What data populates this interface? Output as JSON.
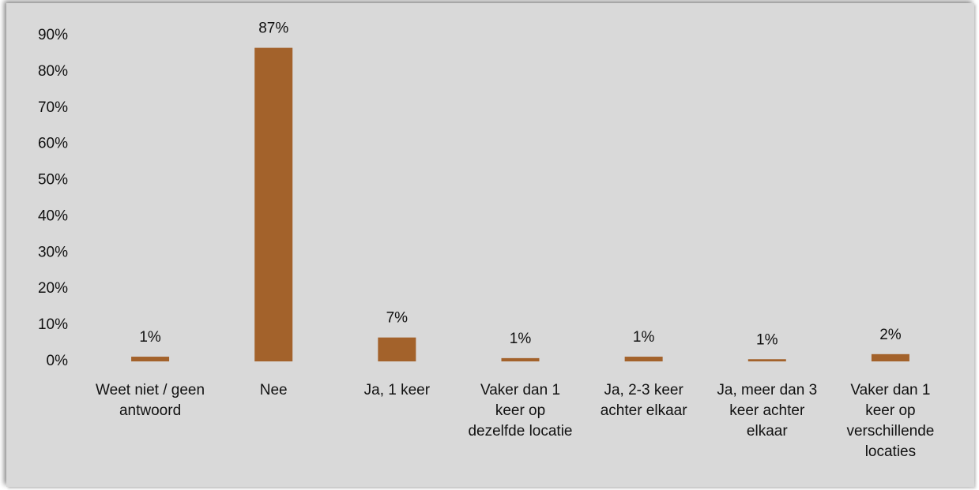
{
  "chart_data": {
    "type": "bar",
    "categories": [
      "Weet niet / geen antwoord",
      "Nee",
      "Ja, 1 keer",
      "Vaker dan 1 keer op dezelfde locatie",
      "Ja, 2-3 keer achter elkaar",
      "Ja, meer dan 3 keer achter elkaar",
      "Vaker dan 1 keer op verschillende locaties"
    ],
    "values": [
      1.3,
      86.6,
      6.6,
      0.9,
      1.3,
      0.6,
      2.0
    ],
    "value_labels": [
      "1%",
      "87%",
      "7%",
      "1%",
      "1%",
      "1%",
      "2%"
    ],
    "color": "#a3622b",
    "ylim": [
      0,
      90
    ],
    "yticks": [
      {
        "value": 0,
        "label": "0%"
      },
      {
        "value": 10,
        "label": "10%"
      },
      {
        "value": 20,
        "label": "20%"
      },
      {
        "value": 30,
        "label": "30%"
      },
      {
        "value": 40,
        "label": "40%"
      },
      {
        "value": 50,
        "label": "50%"
      },
      {
        "value": 60,
        "label": "60%"
      },
      {
        "value": 70,
        "label": "70%"
      },
      {
        "value": 80,
        "label": "80%"
      },
      {
        "value": 90,
        "label": "90%"
      }
    ],
    "grid": false
  }
}
